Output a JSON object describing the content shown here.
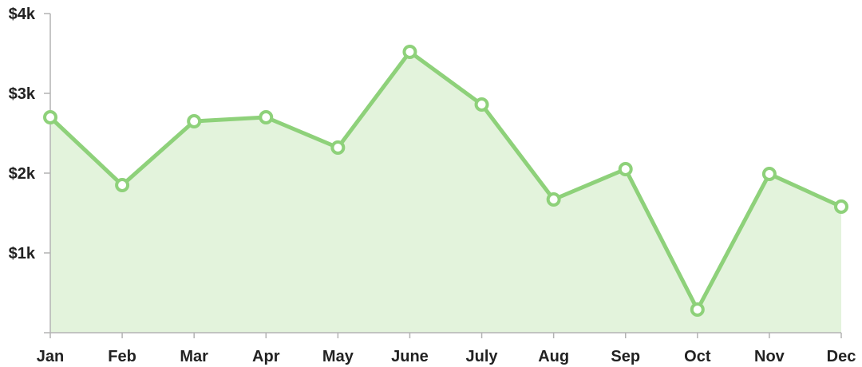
{
  "chart_data": {
    "type": "area",
    "categories": [
      "Jan",
      "Feb",
      "Mar",
      "Apr",
      "May",
      "June",
      "July",
      "Aug",
      "Sep",
      "Oct",
      "Nov",
      "Dec"
    ],
    "values": [
      2700,
      1850,
      2650,
      2700,
      2320,
      3520,
      2860,
      1670,
      2050,
      290,
      1990,
      1580
    ],
    "ylim": [
      0,
      4000
    ],
    "yticks": [
      0,
      1000,
      2000,
      3000,
      4000
    ],
    "ytick_labels": [
      "",
      "$1k",
      "$2k",
      "$3k",
      "$4k"
    ],
    "grid": false,
    "legend": "none",
    "colors": {
      "line": "#8ed17a",
      "fill": "#e3f3dc",
      "marker_fill": "#ffffff",
      "axis": "#b3b3b3",
      "text": "#222222"
    }
  }
}
